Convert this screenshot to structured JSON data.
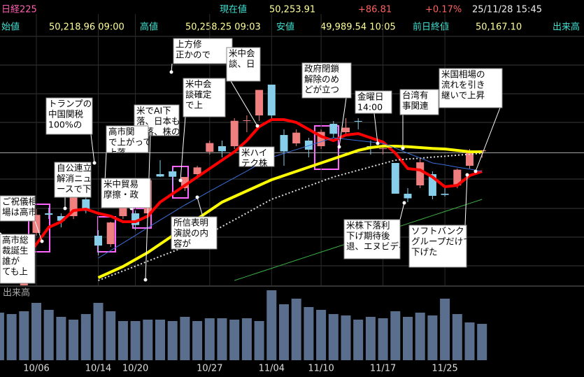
{
  "header": {
    "name": "日経225",
    "current_label": "現在値",
    "current": "50,253.91",
    "change": "+86.81",
    "change_pct": "+0.17%",
    "datetime": "25/11/28 15:45",
    "open_label": "始値",
    "open": "50,218.96 09:00",
    "high_label": "高値",
    "high": "50,258.25 09:03",
    "low_label": "安値",
    "low": "49,989.54 10:05",
    "prev_label": "前日終値",
    "prev": "50,167.10",
    "volume_label": "出来高"
  },
  "chart_data": {
    "type": "candlestick",
    "categories": [
      null,
      null,
      null,
      "10/06",
      null,
      null,
      null,
      null,
      "10/14",
      null,
      null,
      "10/20",
      null,
      null,
      null,
      null,
      null,
      "10/27",
      null,
      null,
      null,
      null,
      "11/04",
      null,
      null,
      null,
      "11/10",
      null,
      null,
      null,
      null,
      "11/17",
      null,
      null,
      null,
      null,
      "11/25",
      null,
      null,
      null
    ],
    "open": [
      45000,
      44700,
      45200,
      47300,
      48000,
      47900,
      47900,
      48500,
      47200,
      46900,
      47900,
      48000,
      48000,
      49400,
      49500,
      48900,
      49400,
      50200,
      50400,
      50400,
      51300,
      51500,
      52600,
      50800,
      50500,
      50600,
      50400,
      51200,
      50900,
      51300,
      50400,
      50300,
      49800,
      48700,
      49000,
      49400,
      48700,
      49000,
      49700,
      50218.96
    ],
    "high": [
      45200,
      45000,
      45800,
      48150,
      48200,
      48000,
      48600,
      48600,
      47400,
      47700,
      48300,
      48100,
      49200,
      49900,
      49600,
      49300,
      49700,
      50600,
      50600,
      51400,
      51500,
      52400,
      52600,
      51000,
      51000,
      50700,
      51000,
      51300,
      51400,
      51400,
      50600,
      50600,
      49800,
      48900,
      50000,
      49500,
      48900,
      49600,
      50300,
      50258.25
    ],
    "low": [
      44500,
      44600,
      45100,
      47200,
      47800,
      47500,
      47800,
      48000,
      46500,
      46800,
      47800,
      47400,
      47900,
      49300,
      49000,
      48800,
      49300,
      50100,
      50000,
      50300,
      50900,
      51300,
      51400,
      49700,
      50400,
      50000,
      50300,
      50700,
      50800,
      51000,
      50100,
      50100,
      48700,
      48400,
      48900,
      48500,
      48600,
      48900,
      49600,
      49989.54
    ],
    "close": [
      44550,
      44936,
      45769,
      47944,
      47950,
      47734,
      48580,
      48088,
      46847,
      47672,
      48277,
      47582,
      49185,
      49316,
      49307,
      49299,
      49641,
      50512,
      50219,
      51307,
      51325,
      52411,
      51497,
      50212,
      50883,
      50276,
      50911,
      50842,
      51063,
      51281,
      50376,
      50323,
      48702,
      48537,
      49823,
      48625,
      48659,
      49559,
      50167,
      50253.91
    ],
    "up_color": "#f08080",
    "down_color": "#87ceeb",
    "ylim": [
      45500,
      55125
    ],
    "prev_close": 50167.1,
    "lines": [
      {
        "color": "#ff0000",
        "width": 4,
        "style": "solid",
        "values": [
          null,
          45600,
          46300,
          46900,
          47500,
          47700,
          48100,
          48150,
          48000,
          47900,
          47700,
          47700,
          47900,
          48400,
          48700,
          49000,
          49300,
          49600,
          49900,
          50200,
          50600,
          51100,
          51350,
          51350,
          51250,
          51000,
          50750,
          50600,
          50800,
          50850,
          50700,
          50550,
          50150,
          49600,
          49550,
          49300,
          48950,
          49000,
          49350,
          49500
        ]
      },
      {
        "color": "#ffff00",
        "width": 4,
        "style": "solid",
        "values": [
          null,
          null,
          null,
          null,
          null,
          null,
          null,
          null,
          45700,
          45900,
          46100,
          46350,
          46600,
          46900,
          47200,
          47500,
          47800,
          48100,
          48400,
          48600,
          48800,
          49000,
          49200,
          49350,
          49500,
          49650,
          49800,
          49950,
          50100,
          50250,
          50350,
          50400,
          50400,
          50380,
          50350,
          50320,
          50300,
          50250,
          50200,
          50200
        ]
      },
      {
        "color": "#dddddd",
        "width": 2,
        "style": "dotted",
        "values": [
          null,
          null,
          null,
          null,
          null,
          null,
          null,
          null,
          45600,
          45770,
          45940,
          46110,
          46290,
          46460,
          46630,
          46800,
          47040,
          47290,
          47530,
          47770,
          48010,
          48260,
          48500,
          48660,
          48820,
          48980,
          49140,
          49300,
          49420,
          49540,
          49660,
          49780,
          49900,
          49940,
          49970,
          50010,
          50040,
          50080,
          50110,
          50150
        ]
      },
      {
        "color": "#3a6fd8",
        "width": 1,
        "style": "solid",
        "values": [
          null,
          null,
          null,
          null,
          null,
          null,
          null,
          null,
          46400,
          46670,
          46940,
          47210,
          47490,
          47760,
          48030,
          48300,
          48540,
          48790,
          49030,
          49270,
          49510,
          49760,
          50000,
          50140,
          50280,
          50420,
          50560,
          50700,
          50650,
          50600,
          50550,
          50500,
          50330,
          50150,
          49980,
          49800,
          49730,
          49650,
          49580,
          49500
        ]
      },
      {
        "color": "#3cb043",
        "width": 1,
        "style": "solid",
        "values": [
          null,
          null,
          null,
          null,
          null,
          null,
          null,
          null,
          null,
          null,
          null,
          null,
          null,
          null,
          null,
          null,
          null,
          null,
          null,
          45600,
          45745,
          45890,
          46035,
          46180,
          46325,
          46470,
          46615,
          46760,
          46905,
          47050,
          47195,
          47340,
          47485,
          47630,
          47775,
          47920,
          48065,
          48210,
          48355,
          48500
        ]
      }
    ],
    "volume": {
      "label": "出来高",
      "color": "#5a6f8e",
      "ylim": [
        0,
        100
      ],
      "values": [
        68,
        66,
        70,
        82,
        72,
        62,
        58,
        66,
        82,
        70,
        56,
        56,
        58,
        58,
        56,
        62,
        56,
        60,
        60,
        58,
        60,
        56,
        100,
        80,
        88,
        76,
        72,
        66,
        64,
        58,
        62,
        60,
        70,
        62,
        68,
        64,
        88,
        66,
        54,
        52
      ]
    },
    "annotations": [
      {
        "lines": [
          "上方修",
          "正かので"
        ]
      },
      {
        "lines": [
          "米中会",
          "談、日"
        ]
      },
      {
        "lines": [
          "政府閉鎖",
          "解除のめ",
          "どが立つ"
        ]
      },
      {
        "lines": [
          "米国相場の",
          "流れを引き",
          "継いで上昇"
        ]
      },
      {
        "lines": [
          "米中会",
          "談確定",
          "で上"
        ]
      },
      {
        "lines": [
          "金曜日",
          "14:00"
        ]
      },
      {
        "lines": [
          "台湾有",
          "事関連"
        ]
      },
      {
        "lines": [
          "トランプの",
          "中国関税",
          "100%の"
        ]
      },
      {
        "lines": [
          "米でAI下",
          "落、日本も",
          "下落、株の"
        ]
      },
      {
        "lines": [
          "高市関",
          "で上がって",
          "上落"
        ]
      },
      {
        "lines": [
          "米ハイ",
          "テク株"
        ]
      },
      {
        "lines": [
          "自公連立",
          "解消ニュ",
          "ースで下"
        ]
      },
      {
        "lines": [
          "米中貿易",
          "摩擦・政"
        ]
      },
      {
        "lines": [
          "ご祝儀相",
          "場は高市"
        ]
      },
      {
        "lines": [
          "所信表明",
          "演説の内",
          "容が"
        ]
      },
      {
        "lines": [
          "高市総",
          "裁誕生",
          "誰が",
          "ても上"
        ]
      },
      {
        "lines": [
          "米株下落利",
          "下げ期待後",
          "退、エヌビディ"
        ]
      },
      {
        "lines": [
          "ソフトバンク",
          "グループだけで",
          "下げた"
        ]
      }
    ]
  }
}
